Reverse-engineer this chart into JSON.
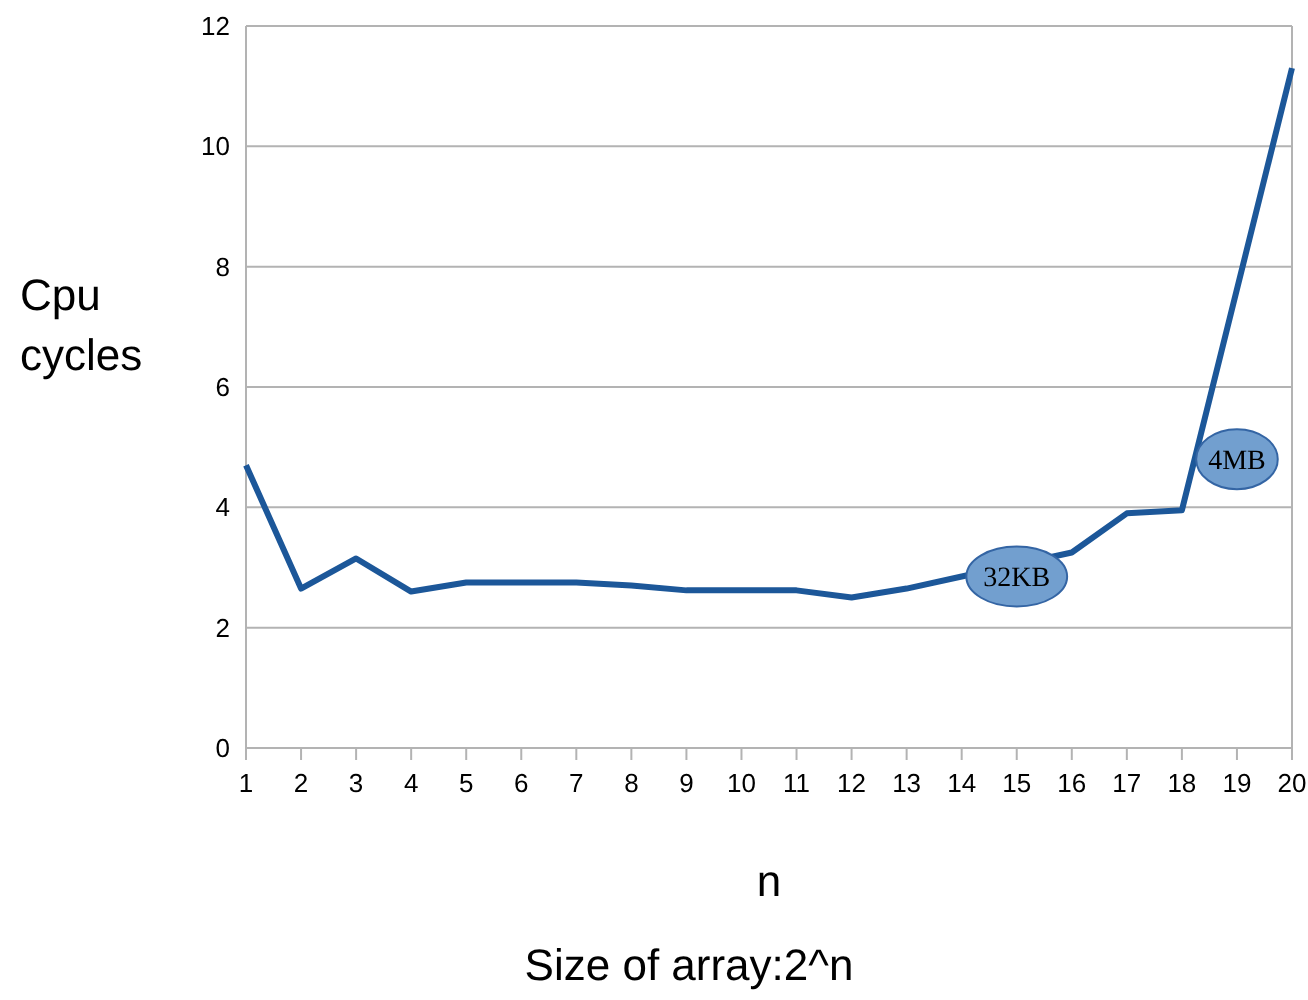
{
  "chart_data": {
    "type": "line",
    "xlabel": "n",
    "ylabel": "Cpu cycles",
    "categories": [
      "1",
      "2",
      "3",
      "4",
      "5",
      "6",
      "7",
      "8",
      "9",
      "10",
      "11",
      "12",
      "13",
      "14",
      "15",
      "16",
      "17",
      "18",
      "19",
      "20"
    ],
    "series": [
      {
        "color": "#1c5799",
        "values": [
          4.7,
          2.65,
          3.15,
          2.6,
          2.75,
          2.75,
          2.75,
          2.7,
          2.62,
          2.62,
          2.62,
          2.5,
          2.65,
          2.85,
          null,
          3.25,
          3.9,
          3.95,
          null,
          11.3
        ]
      }
    ],
    "ylim": [
      0,
      12
    ],
    "yticks": [
      0,
      2,
      4,
      6,
      8,
      10,
      12
    ],
    "grid": "y",
    "marker": "none",
    "line_style": "solid",
    "annotations": [
      {
        "text": "32KB",
        "x": "15",
        "y": 2.85
      },
      {
        "text": "4MB",
        "x": "19",
        "y": 4.8
      },
      "Size of array:2^n"
    ]
  }
}
